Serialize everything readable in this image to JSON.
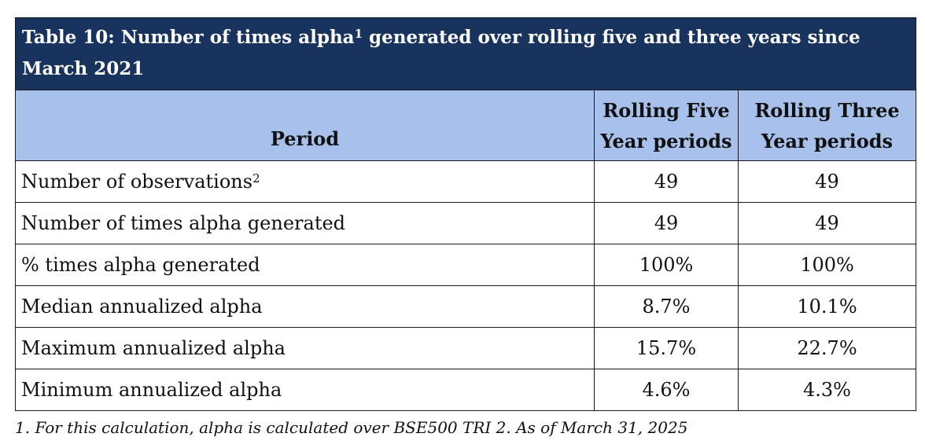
{
  "table": {
    "caption": {
      "text": "Table 10: Number of times alpha",
      "sup": "1",
      "text_after": " generated over rolling five and three years since March 2021"
    },
    "columns": [
      {
        "label": "Period"
      },
      {
        "label": "Rolling Five Year periods"
      },
      {
        "label": "Rolling Three Year periods"
      }
    ],
    "rows": [
      {
        "label": "Number of observations",
        "sup": "2",
        "five": "49",
        "three": "49"
      },
      {
        "label": "Number of times alpha generated",
        "sup": "",
        "five": "49",
        "three": "49"
      },
      {
        "label": "% times alpha generated",
        "sup": "",
        "five": "100%",
        "three": "100%"
      },
      {
        "label": "Median annualized alpha",
        "sup": "",
        "five": "8.7%",
        "three": "10.1%"
      },
      {
        "label": "Maximum annualized alpha",
        "sup": "",
        "five": "15.7%",
        "three": "22.7%"
      },
      {
        "label": "Minimum annualized alpha",
        "sup": "",
        "five": "4.6%",
        "three": "4.3%"
      }
    ]
  },
  "footnote": "1. For this calculation, alpha is calculated over BSE500 TRI 2. As of March 31, 2025",
  "colors": {
    "caption_bg": "#18345e",
    "header_bg": "#a7c0ec",
    "border": "#1a1a1a"
  }
}
